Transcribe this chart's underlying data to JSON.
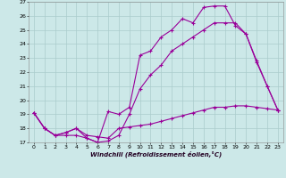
{
  "xlabel": "Windchill (Refroidissement éolien,°C)",
  "bg_color": "#cce8e8",
  "grid_color": "#aacccc",
  "line_color": "#990099",
  "xlim": [
    -0.5,
    23.5
  ],
  "ylim": [
    17,
    27
  ],
  "yticks": [
    17,
    18,
    19,
    20,
    21,
    22,
    23,
    24,
    25,
    26,
    27
  ],
  "xticks": [
    0,
    1,
    2,
    3,
    4,
    5,
    6,
    7,
    8,
    9,
    10,
    11,
    12,
    13,
    14,
    15,
    16,
    17,
    18,
    19,
    20,
    21,
    22,
    23
  ],
  "line1_x": [
    0,
    1,
    2,
    3,
    4,
    5,
    6,
    7,
    8,
    9,
    10,
    11,
    12,
    13,
    14,
    15,
    16,
    17,
    18,
    19,
    20,
    21,
    22,
    23
  ],
  "line1_y": [
    19.1,
    18.0,
    17.5,
    17.7,
    18.0,
    17.3,
    17.0,
    19.2,
    19.0,
    19.5,
    23.2,
    23.5,
    24.5,
    25.0,
    25.8,
    25.5,
    26.6,
    26.7,
    26.7,
    25.3,
    24.7,
    22.7,
    21.0,
    19.3
  ],
  "line2_x": [
    0,
    1,
    2,
    3,
    4,
    5,
    6,
    7,
    8,
    9,
    10,
    11,
    12,
    13,
    14,
    15,
    16,
    17,
    18,
    19,
    20,
    21,
    22,
    23
  ],
  "line2_y": [
    19.1,
    18.0,
    17.5,
    17.7,
    18.0,
    17.5,
    17.4,
    17.3,
    18.0,
    18.1,
    18.2,
    18.3,
    18.5,
    18.7,
    18.9,
    19.1,
    19.3,
    19.5,
    19.5,
    19.6,
    19.6,
    19.5,
    19.4,
    19.3
  ],
  "line3_x": [
    0,
    1,
    2,
    3,
    4,
    5,
    6,
    7,
    8,
    9,
    10,
    11,
    12,
    13,
    14,
    15,
    16,
    17,
    18,
    19,
    20,
    21,
    22,
    23
  ],
  "line3_y": [
    19.1,
    18.0,
    17.5,
    17.5,
    17.5,
    17.3,
    17.0,
    17.1,
    17.5,
    19.0,
    20.8,
    21.8,
    22.5,
    23.5,
    24.0,
    24.5,
    25.0,
    25.5,
    25.5,
    25.5,
    24.7,
    22.8,
    21.0,
    19.3
  ]
}
